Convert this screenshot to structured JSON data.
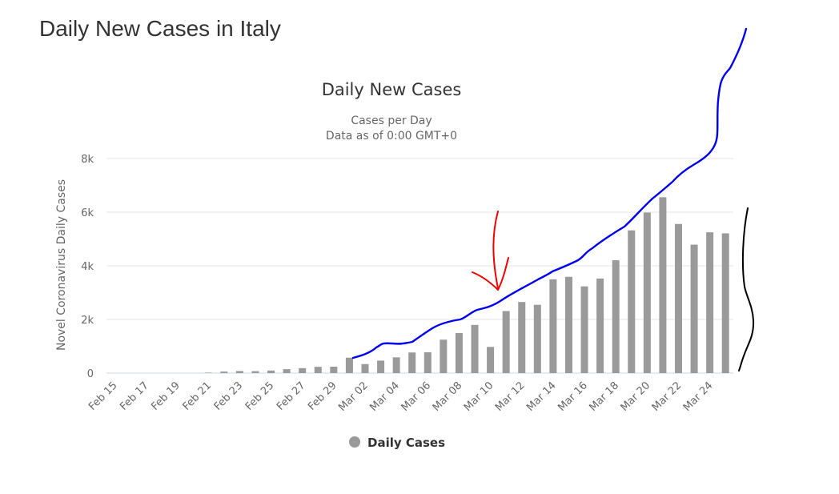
{
  "page": {
    "title": "Daily New Cases in Italy"
  },
  "chart_data": {
    "type": "bar",
    "title": "Daily New Cases",
    "subtitle": [
      "Cases per Day",
      "Data as of 0:00 GMT+0"
    ],
    "ylabel": "Novel Coronavirus Daily Cases",
    "xlabel": "",
    "ylim": [
      0,
      8000
    ],
    "yticks": [
      0,
      2000,
      4000,
      6000,
      8000
    ],
    "ytick_labels": [
      "0",
      "2k",
      "4k",
      "6k",
      "8k"
    ],
    "grid": true,
    "legend": {
      "position": "bottom-center",
      "label": "Daily Cases"
    },
    "colors": {
      "bar": "#9a9a9a",
      "grid": "#e6e6e6",
      "axis": "#ccd6eb",
      "blue_annotation": "#0000ee",
      "red_annotation": "#ee0000",
      "black_annotation": "#000000"
    },
    "categories": [
      "Feb 15",
      "Feb 16",
      "Feb 17",
      "Feb 18",
      "Feb 19",
      "Feb 20",
      "Feb 21",
      "Feb 22",
      "Feb 23",
      "Feb 24",
      "Feb 25",
      "Feb 26",
      "Feb 27",
      "Feb 28",
      "Feb 29",
      "Mar 01",
      "Mar 02",
      "Mar 03",
      "Mar 04",
      "Mar 05",
      "Mar 06",
      "Mar 07",
      "Mar 08",
      "Mar 09",
      "Mar 10",
      "Mar 11",
      "Mar 12",
      "Mar 13",
      "Mar 14",
      "Mar 15",
      "Mar 16",
      "Mar 17",
      "Mar 18",
      "Mar 19",
      "Mar 20",
      "Mar 21",
      "Mar 22",
      "Mar 23",
      "Mar 24",
      "Mar 25"
    ],
    "xtick_labels": [
      "Feb 15",
      "Feb 17",
      "Feb 19",
      "Feb 21",
      "Feb 23",
      "Feb 25",
      "Feb 27",
      "Feb 29",
      "Mar 02",
      "Mar 04",
      "Mar 06",
      "Mar 08",
      "Mar 10",
      "Mar 12",
      "Mar 14",
      "Mar 16",
      "Mar 18",
      "Mar 20",
      "Mar 22",
      "Mar 24"
    ],
    "series": [
      {
        "name": "Daily Cases",
        "values": [
          0,
          0,
          0,
          0,
          0,
          0,
          17,
          58,
          78,
          72,
          94,
          147,
          185,
          234,
          239,
          573,
          335,
          466,
          587,
          769,
          778,
          1247,
          1492,
          1797,
          977,
          2313,
          2651,
          2547,
          3497,
          3590,
          3233,
          3526,
          4207,
          5322,
          5986,
          6557,
          5560,
          4789,
          5249,
          5210
        ]
      }
    ]
  }
}
